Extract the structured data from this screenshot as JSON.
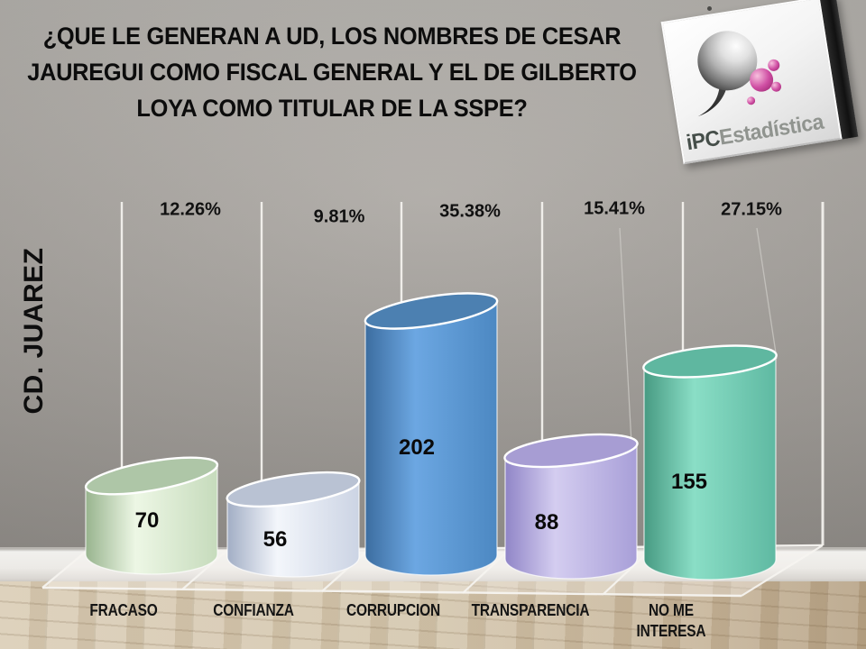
{
  "title": {
    "lines": [
      "¿QUE LE GENERAN A UD, LOS NOMBRES DE CESAR",
      "JAUREGUI COMO FISCAL GENERAL Y EL DE GILBERTO",
      "LOYA COMO TITULAR DE LA SSPE?"
    ]
  },
  "side_label": "CD. JUAREZ",
  "logo": {
    "brand_bold": "iPC",
    "brand_rest": "Estadística",
    "sphere_color": "#8a8a8a",
    "bubble_color": "#c2368e"
  },
  "chart_data": {
    "type": "bar",
    "subtype": "3d-cylinder",
    "title": "¿QUE LE GENERAN A UD, LOS NOMBRES DE CESAR JAUREGUI COMO FISCAL GENERAL Y EL DE GILBERTO LOYA COMO TITULAR DE LA SSPE?",
    "region_label": "CD. JUAREZ",
    "categories": [
      "FRACASO",
      "CONFIANZA",
      "CORRUPCION",
      "TRANSPARENCIA",
      "NO ME INTERESA"
    ],
    "values": [
      70,
      56,
      202,
      88,
      155
    ],
    "percent_labels": [
      "12.26%",
      "9.81%",
      "35.38%",
      "15.41%",
      "27.15%"
    ],
    "xlabel": "",
    "ylabel": "",
    "legend_position": "none",
    "grid": true,
    "bar_colors": [
      {
        "top": "#aec6a7",
        "dark": "#98b48e",
        "light": "#edf7e5",
        "mid": "#c6dbbc"
      },
      {
        "top": "#b9c2d3",
        "dark": "#a2aec5",
        "light": "#f3f6fb",
        "mid": "#ccd4e4"
      },
      {
        "top": "#4c80b1",
        "dark": "#3c6da0",
        "light": "#6ca7e2",
        "mid": "#4c88c2"
      },
      {
        "top": "#a79dd3",
        "dark": "#9085c7",
        "light": "#d4cdf0",
        "mid": "#a89fd8"
      },
      {
        "top": "#5fb7a0",
        "dark": "#479a82",
        "light": "#8adec6",
        "mid": "#5fb9a2"
      }
    ]
  }
}
